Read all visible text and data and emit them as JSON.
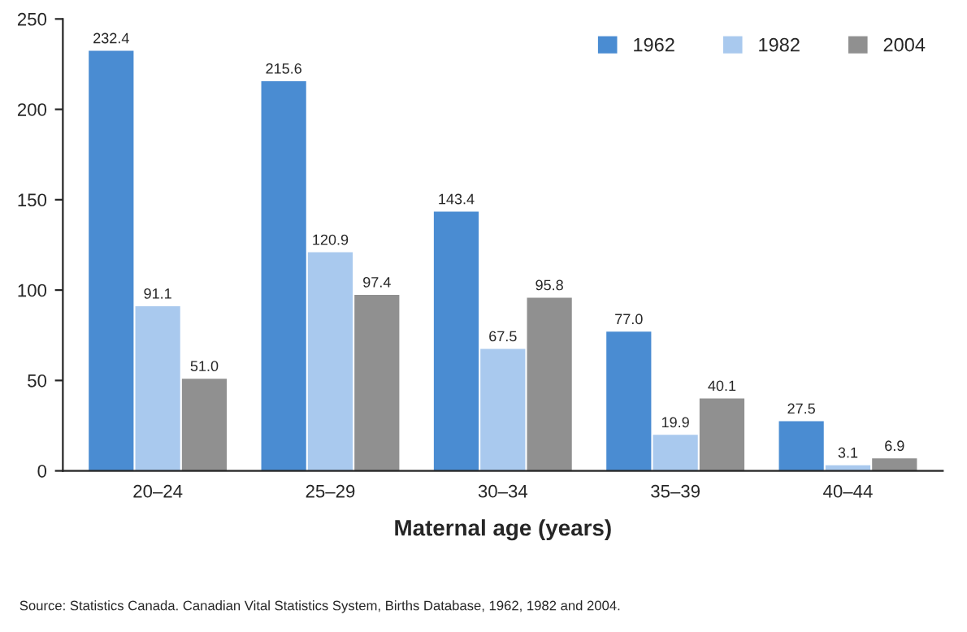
{
  "chart_data": {
    "type": "bar",
    "categories": [
      "20–24",
      "25–29",
      "30–34",
      "35–39",
      "40–44"
    ],
    "xlabel": "Maternal age (years)",
    "series": [
      {
        "name": "1962",
        "color": "#4a8cd2",
        "values": [
          232.4,
          215.6,
          143.4,
          77.0,
          27.5
        ],
        "value_labels": [
          "232.4",
          "215.6",
          "143.4",
          "77.0",
          "27.5"
        ]
      },
      {
        "name": "1982",
        "color": "#a9c9ee",
        "values": [
          91.1,
          120.9,
          67.5,
          19.9,
          3.1
        ],
        "value_labels": [
          "91.1",
          "120.9",
          "67.5",
          "19.9",
          "3.1"
        ]
      },
      {
        "name": "2004",
        "color": "#909090",
        "values": [
          51.0,
          97.4,
          95.8,
          40.1,
          6.9
        ],
        "value_labels": [
          "51.0",
          "97.4",
          "95.8",
          "40.1",
          "6.9"
        ]
      }
    ],
    "ylim": [
      0,
      250
    ],
    "yticks": [
      0,
      50,
      100,
      150,
      200,
      250
    ],
    "grid": false,
    "legend": "top right",
    "annotations": [
      "Source: Statistics Canada. Canadian Vital Statistics System, Births Database, 1962, 1982 and 2004."
    ]
  }
}
